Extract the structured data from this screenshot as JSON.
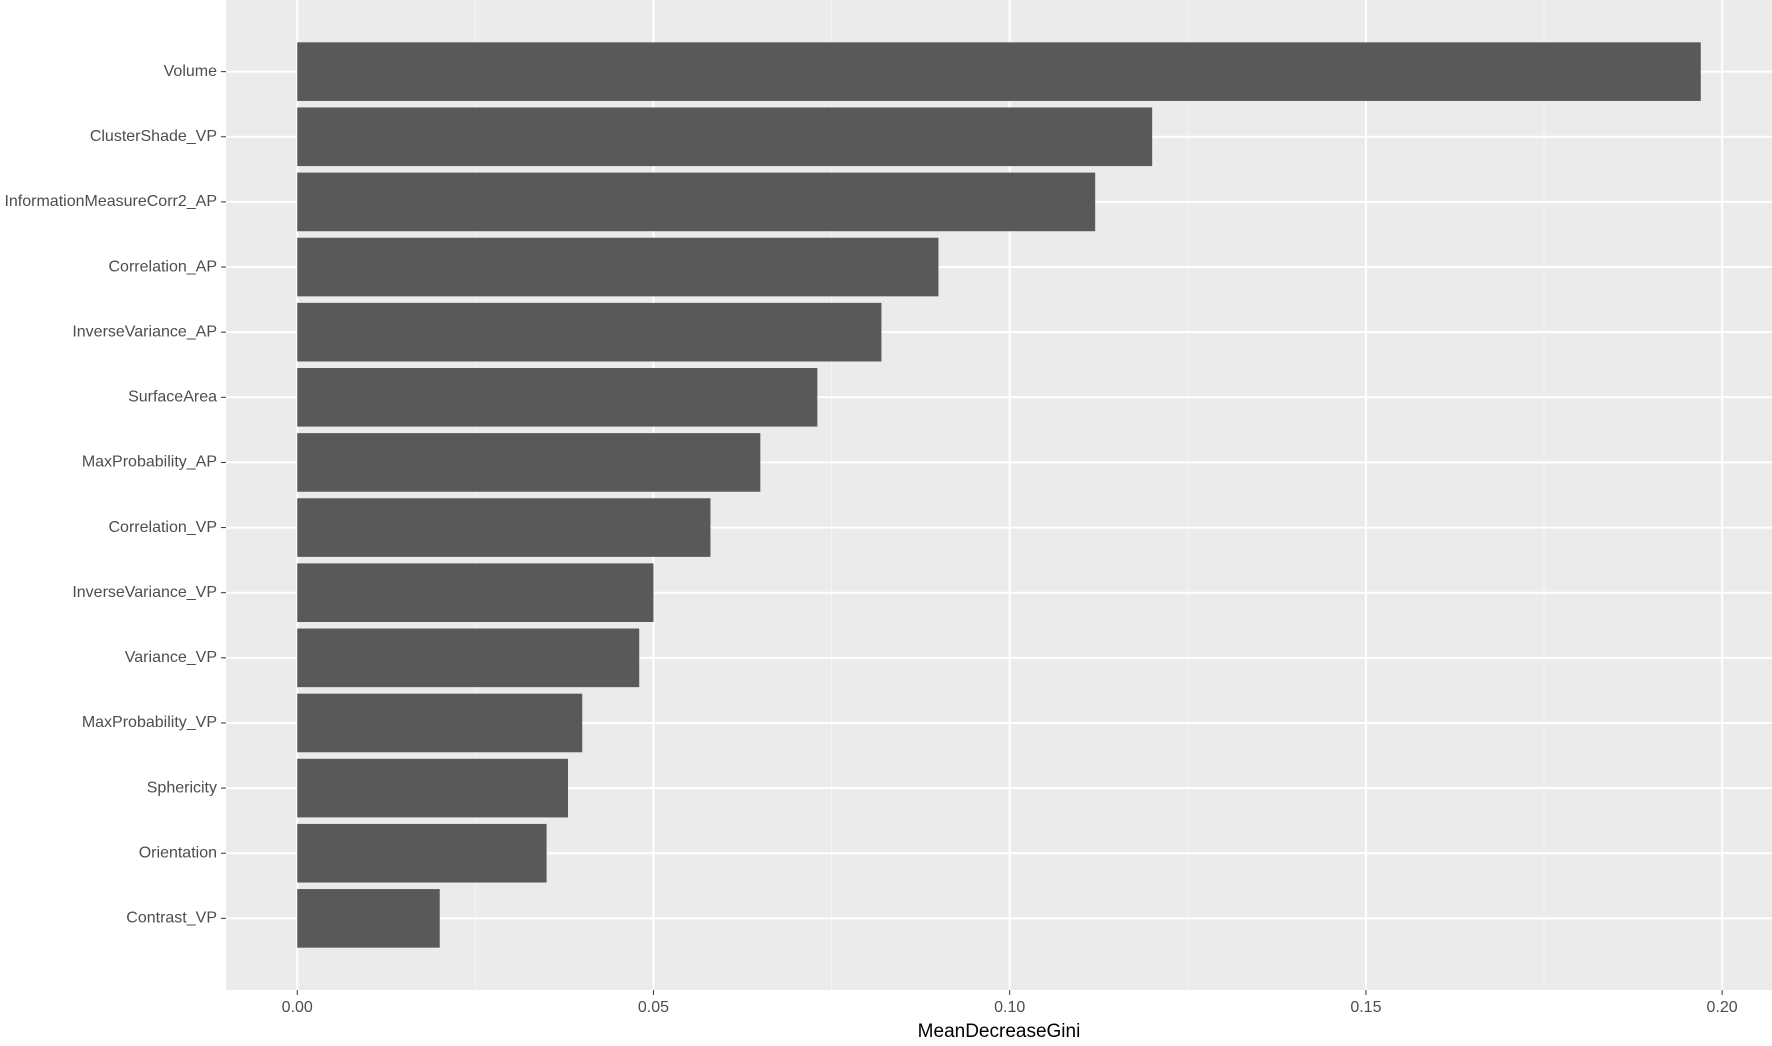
{
  "chart_data": {
    "type": "bar",
    "orientation": "horizontal",
    "x_label": "MeanDecreaseGini",
    "categories": [
      "Volume",
      "ClusterShade_VP",
      "InformationMeasureCorr2_AP",
      "Correlation_AP",
      "InverseVariance_AP",
      "SurfaceArea",
      "MaxProbability_AP",
      "Correlation_VP",
      "InverseVariance_VP",
      "Variance_VP",
      "MaxProbability_VP",
      "Sphericity",
      "Orientation",
      "Contrast_VP"
    ],
    "values": [
      0.197,
      0.12,
      0.112,
      0.09,
      0.082,
      0.073,
      0.065,
      0.058,
      0.05,
      0.048,
      0.04,
      0.038,
      0.035,
      0.02
    ],
    "color": "#595959",
    "xlim": [
      -0.01,
      0.207
    ],
    "xticks": [
      {
        "value": 0,
        "label": "0.00"
      },
      {
        "value": 0.05,
        "label": "0.05"
      },
      {
        "value": 0.1,
        "label": "0.10"
      },
      {
        "value": 0.15,
        "label": "0.15"
      },
      {
        "value": 0.2,
        "label": "0.20"
      }
    ],
    "grid": true
  }
}
